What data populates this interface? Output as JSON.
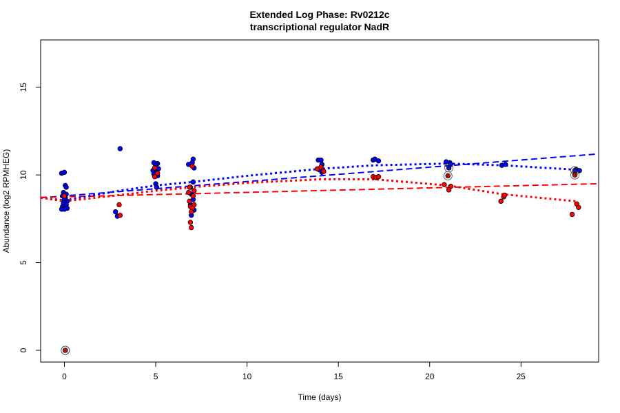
{
  "chart_data": {
    "type": "scatter",
    "title": "Extended Log Phase:      Rv0212c",
    "subtitle": "transcriptional regulator NadR",
    "xlabel": "Time  (days)",
    "ylabel": "Abundance  (log2 RPMHEG)",
    "xlim": [
      -1.3,
      29.25
    ],
    "ylim": [
      -0.67,
      17.7
    ],
    "xticks": [
      0,
      5,
      10,
      15,
      20,
      25
    ],
    "yticks": [
      0,
      5,
      10,
      15
    ],
    "grid": false,
    "colors": {
      "blue": "#0000ff",
      "red": "#ff0000"
    },
    "series": [
      {
        "color": "#0000ff",
        "points": [
          [
            -0.15,
            10.1
          ],
          [
            0.0,
            10.15
          ],
          [
            0.05,
            9.4
          ],
          [
            0.1,
            9.3
          ],
          [
            -0.05,
            9.0
          ],
          [
            0.1,
            8.9
          ],
          [
            -0.1,
            8.8
          ],
          [
            0.05,
            8.7
          ],
          [
            0.0,
            8.6
          ],
          [
            0.15,
            8.5
          ],
          [
            -0.05,
            8.4
          ],
          [
            0.1,
            8.3
          ],
          [
            -0.1,
            8.2
          ],
          [
            0.15,
            8.1
          ],
          [
            0.0,
            8.05
          ],
          [
            -0.15,
            8.05
          ],
          [
            3.05,
            11.5
          ],
          [
            2.8,
            7.9
          ],
          [
            2.9,
            7.65
          ],
          [
            4.9,
            10.7
          ],
          [
            5.1,
            10.65
          ],
          [
            5.0,
            10.55
          ],
          [
            4.95,
            10.4
          ],
          [
            5.15,
            10.35
          ],
          [
            4.85,
            10.25
          ],
          [
            5.05,
            10.15
          ],
          [
            4.9,
            10.05
          ],
          [
            5.1,
            9.95
          ],
          [
            5.0,
            9.5
          ],
          [
            5.05,
            9.3
          ],
          [
            7.05,
            10.9
          ],
          [
            7.0,
            10.7
          ],
          [
            6.8,
            10.6
          ],
          [
            7.1,
            10.4
          ],
          [
            7.05,
            9.6
          ],
          [
            6.9,
            9.3
          ],
          [
            7.1,
            9.1
          ],
          [
            6.95,
            8.9
          ],
          [
            7.05,
            8.6
          ],
          [
            6.9,
            8.3
          ],
          [
            7.1,
            8.0
          ],
          [
            6.95,
            7.7
          ],
          [
            13.9,
            10.85
          ],
          [
            14.05,
            10.85
          ],
          [
            14.1,
            10.6
          ],
          [
            13.95,
            10.3
          ],
          [
            14.1,
            10.15
          ],
          [
            16.9,
            10.85
          ],
          [
            17.0,
            10.9
          ],
          [
            17.2,
            10.8
          ],
          [
            20.9,
            10.75
          ],
          [
            21.1,
            10.7
          ],
          [
            21.15,
            10.6
          ],
          [
            23.95,
            10.55
          ],
          [
            24.15,
            10.6
          ],
          [
            28.0,
            10.3
          ],
          [
            28.2,
            10.25
          ],
          [
            27.95,
            10.2
          ]
        ],
        "circled": [
          [
            0.05,
            0
          ],
          [
            21.05,
            10.4
          ],
          [
            27.95,
            10.25
          ]
        ]
      },
      {
        "color": "#ff0000",
        "points": [
          [
            0.0,
            8.8
          ],
          [
            3.0,
            8.3
          ],
          [
            3.05,
            7.7
          ],
          [
            4.95,
            10.4
          ],
          [
            5.1,
            10.1
          ],
          [
            4.95,
            9.9
          ],
          [
            7.0,
            10.5
          ],
          [
            6.85,
            9.3
          ],
          [
            7.1,
            9.1
          ],
          [
            6.8,
            9.0
          ],
          [
            7.05,
            8.8
          ],
          [
            6.85,
            8.5
          ],
          [
            7.1,
            8.3
          ],
          [
            6.9,
            8.2
          ],
          [
            7.0,
            8.1
          ],
          [
            6.95,
            7.9
          ],
          [
            6.9,
            7.3
          ],
          [
            6.95,
            7.0
          ],
          [
            13.85,
            10.35
          ],
          [
            14.05,
            10.45
          ],
          [
            14.2,
            10.2
          ],
          [
            16.9,
            9.9
          ],
          [
            17.05,
            9.85
          ],
          [
            17.2,
            9.9
          ],
          [
            20.8,
            9.45
          ],
          [
            21.15,
            9.35
          ],
          [
            21.05,
            9.15
          ],
          [
            23.9,
            8.5
          ],
          [
            24.05,
            8.75
          ],
          [
            24.1,
            8.85
          ],
          [
            27.8,
            7.75
          ],
          [
            28.05,
            8.35
          ],
          [
            28.15,
            8.15
          ]
        ],
        "circled": [
          [
            0.05,
            0
          ],
          [
            21.0,
            9.95
          ],
          [
            27.95,
            10.0
          ]
        ]
      }
    ],
    "lines": [
      {
        "color": "#0000ff",
        "style": "dashed",
        "x": [
          -1.3,
          29.25
        ],
        "y": [
          8.7,
          11.2
        ]
      },
      {
        "color": "#ff0000",
        "style": "dashed",
        "x": [
          -1.3,
          29.25
        ],
        "y": [
          8.72,
          9.5
        ]
      },
      {
        "color": "#0000ff",
        "style": "dotted",
        "x": [
          -1.3,
          0,
          3,
          5,
          7,
          10,
          14,
          17,
          21,
          24,
          28
        ],
        "y": [
          8.7,
          8.55,
          9.1,
          9.4,
          9.6,
          9.95,
          10.35,
          10.55,
          10.65,
          10.55,
          10.3
        ]
      },
      {
        "color": "#ff0000",
        "style": "dotted",
        "x": [
          -1.3,
          0,
          3,
          5,
          7,
          10,
          14,
          17,
          21,
          24,
          28
        ],
        "y": [
          8.7,
          8.5,
          8.85,
          9.1,
          9.3,
          9.55,
          9.75,
          9.75,
          9.4,
          8.9,
          8.5
        ]
      }
    ]
  }
}
